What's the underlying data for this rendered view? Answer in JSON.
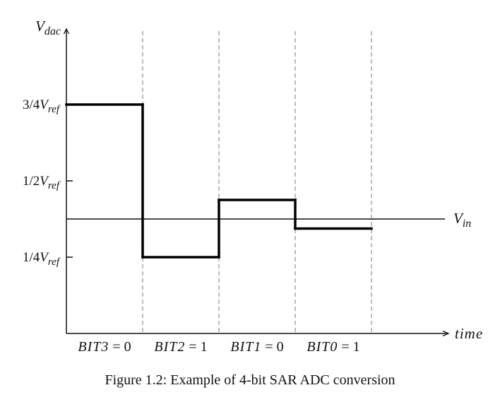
{
  "caption": "Figure 1.2: Example of 4-bit SAR ADC conversion",
  "chart_data": {
    "type": "line",
    "title": "",
    "ylabel": {
      "base": "V",
      "sub": "dac"
    },
    "xlabel": "time",
    "y_ticks": [
      {
        "value": 0.75,
        "num": "3/4",
        "base": "V",
        "sub": "ref"
      },
      {
        "value": 0.5,
        "num": "1/2",
        "base": "V",
        "sub": "ref"
      },
      {
        "value": 0.25,
        "num": "1/4",
        "base": "V",
        "sub": "ref"
      }
    ],
    "ylim": [
      0,
      1
    ],
    "xlim": [
      0,
      5
    ],
    "reference_line": {
      "value": 0.375,
      "label_base": "V",
      "label_sub": "in"
    },
    "steps": [
      {
        "x0": 0,
        "x1": 1,
        "y": 0.75
      },
      {
        "x0": 1,
        "x1": 2,
        "y": 0.25
      },
      {
        "x0": 2,
        "x1": 3,
        "y": 0.4375
      },
      {
        "x0": 3,
        "x1": 4,
        "y": 0.34375
      }
    ],
    "interval_boundaries": [
      1,
      2,
      3,
      4
    ],
    "bit_labels": [
      {
        "name": "BIT3",
        "value": "0"
      },
      {
        "name": "BIT2",
        "value": "1"
      },
      {
        "name": "BIT1",
        "value": "0"
      },
      {
        "name": "BIT0",
        "value": "1"
      }
    ],
    "colors": {
      "signal": "#000000",
      "axis": "#111111",
      "divider": "#7a7a7a"
    }
  }
}
